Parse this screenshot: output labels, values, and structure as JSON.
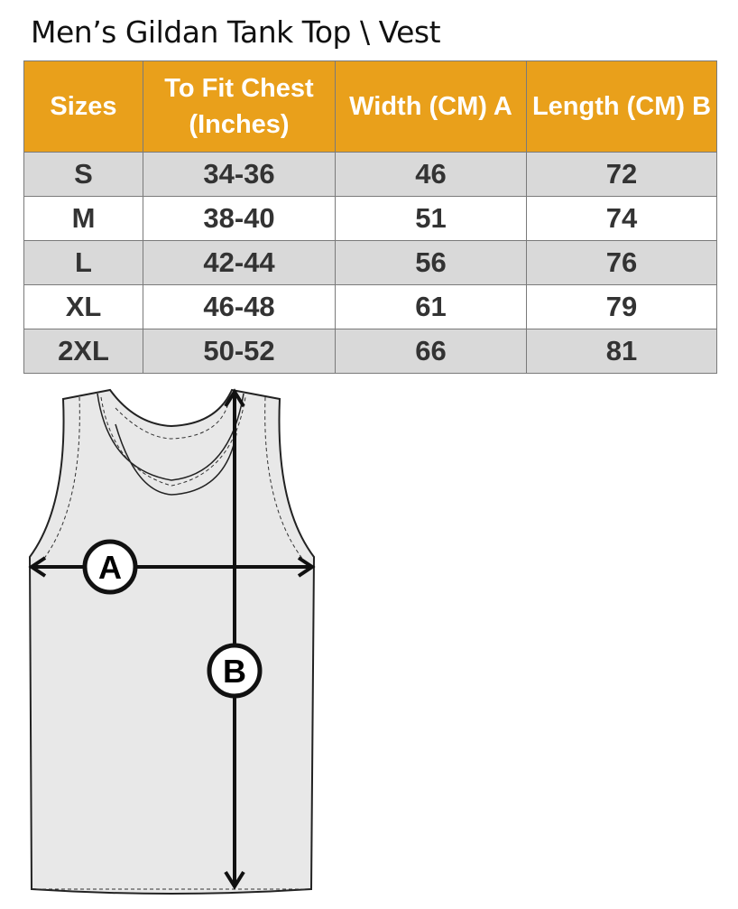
{
  "title": "Men’s Gildan Tank Top \\ Vest",
  "table": {
    "headers": [
      "Sizes",
      "To Fit Chest (Inches)",
      "Width (CM) A",
      "Length  (CM) B"
    ],
    "rows": [
      [
        "S",
        "34-36",
        "46",
        "72"
      ],
      [
        "M",
        "38-40",
        "51",
        "74"
      ],
      [
        "L",
        "42-44",
        "56",
        "76"
      ],
      [
        "XL",
        "46-48",
        "61",
        "79"
      ],
      [
        "2XL",
        "50-52",
        "66",
        "81"
      ]
    ]
  },
  "diagram": {
    "label_a": "A",
    "label_b": "B"
  },
  "colors": {
    "header": "#e9a01b",
    "row_alt": "#d9d9d9",
    "garment": "#e8e8e8"
  }
}
